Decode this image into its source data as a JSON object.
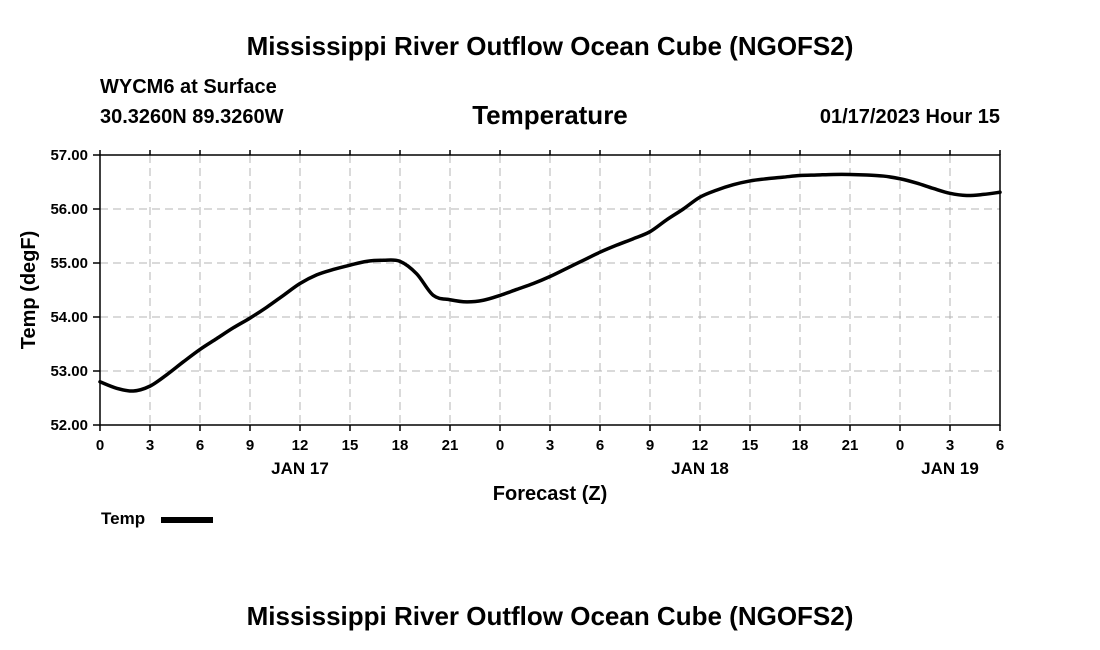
{
  "header": {
    "title": "Mississippi River Outflow Ocean Cube (NGOFS2)",
    "station": "WYCM6 at Surface",
    "location": "30.3260N  89.3260W",
    "timestamp": "01/17/2023 Hour 15"
  },
  "footer": {
    "title": "Mississippi River Outflow Ocean Cube (NGOFS2)"
  },
  "legend": {
    "label": "Temp"
  },
  "chart_data": {
    "type": "line",
    "title": "Temperature",
    "xlabel": "Forecast (Z)",
    "ylabel": "Temp (degF)",
    "xlim": [
      0,
      54
    ],
    "ylim": [
      52.0,
      57.0
    ],
    "x_ticks": [
      0,
      3,
      6,
      9,
      12,
      15,
      18,
      21,
      24,
      27,
      30,
      33,
      36,
      39,
      42,
      45,
      48,
      51,
      54
    ],
    "x_tick_labels": [
      "0",
      "3",
      "6",
      "9",
      "12",
      "15",
      "18",
      "21",
      "0",
      "3",
      "6",
      "9",
      "12",
      "15",
      "18",
      "21",
      "0",
      "3",
      "6"
    ],
    "y_ticks": [
      52.0,
      53.0,
      54.0,
      55.0,
      56.0,
      57.0
    ],
    "y_tick_labels": [
      "52.00",
      "53.00",
      "54.00",
      "55.00",
      "56.00",
      "57.00"
    ],
    "day_labels": [
      {
        "x": 12,
        "label": "JAN 17"
      },
      {
        "x": 36,
        "label": "JAN 18"
      },
      {
        "x": 51,
        "label": "JAN 19"
      }
    ],
    "grid": true,
    "series": [
      {
        "name": "Temp",
        "color": "#000000",
        "x": [
          0,
          1,
          2,
          3,
          4,
          5,
          6,
          7,
          8,
          9,
          10,
          11,
          12,
          13,
          14,
          15,
          16,
          17,
          18,
          19,
          20,
          21,
          22,
          23,
          24,
          25,
          26,
          27,
          28,
          29,
          30,
          31,
          32,
          33,
          34,
          35,
          36,
          37,
          38,
          39,
          40,
          41,
          42,
          43,
          44,
          45,
          46,
          47,
          48,
          49,
          50,
          51,
          52,
          53,
          54
        ],
        "y": [
          52.8,
          52.68,
          52.63,
          52.72,
          52.93,
          53.17,
          53.4,
          53.6,
          53.8,
          53.98,
          54.18,
          54.4,
          54.62,
          54.78,
          54.88,
          54.96,
          55.03,
          55.05,
          55.03,
          54.8,
          54.4,
          54.32,
          54.28,
          54.31,
          54.4,
          54.51,
          54.62,
          54.75,
          54.9,
          55.05,
          55.2,
          55.33,
          55.45,
          55.58,
          55.8,
          56.0,
          56.22,
          56.35,
          56.45,
          56.52,
          56.56,
          56.59,
          56.62,
          56.63,
          56.64,
          56.64,
          56.63,
          56.61,
          56.56,
          56.48,
          56.38,
          56.29,
          56.25,
          56.27,
          56.31
        ]
      }
    ]
  }
}
